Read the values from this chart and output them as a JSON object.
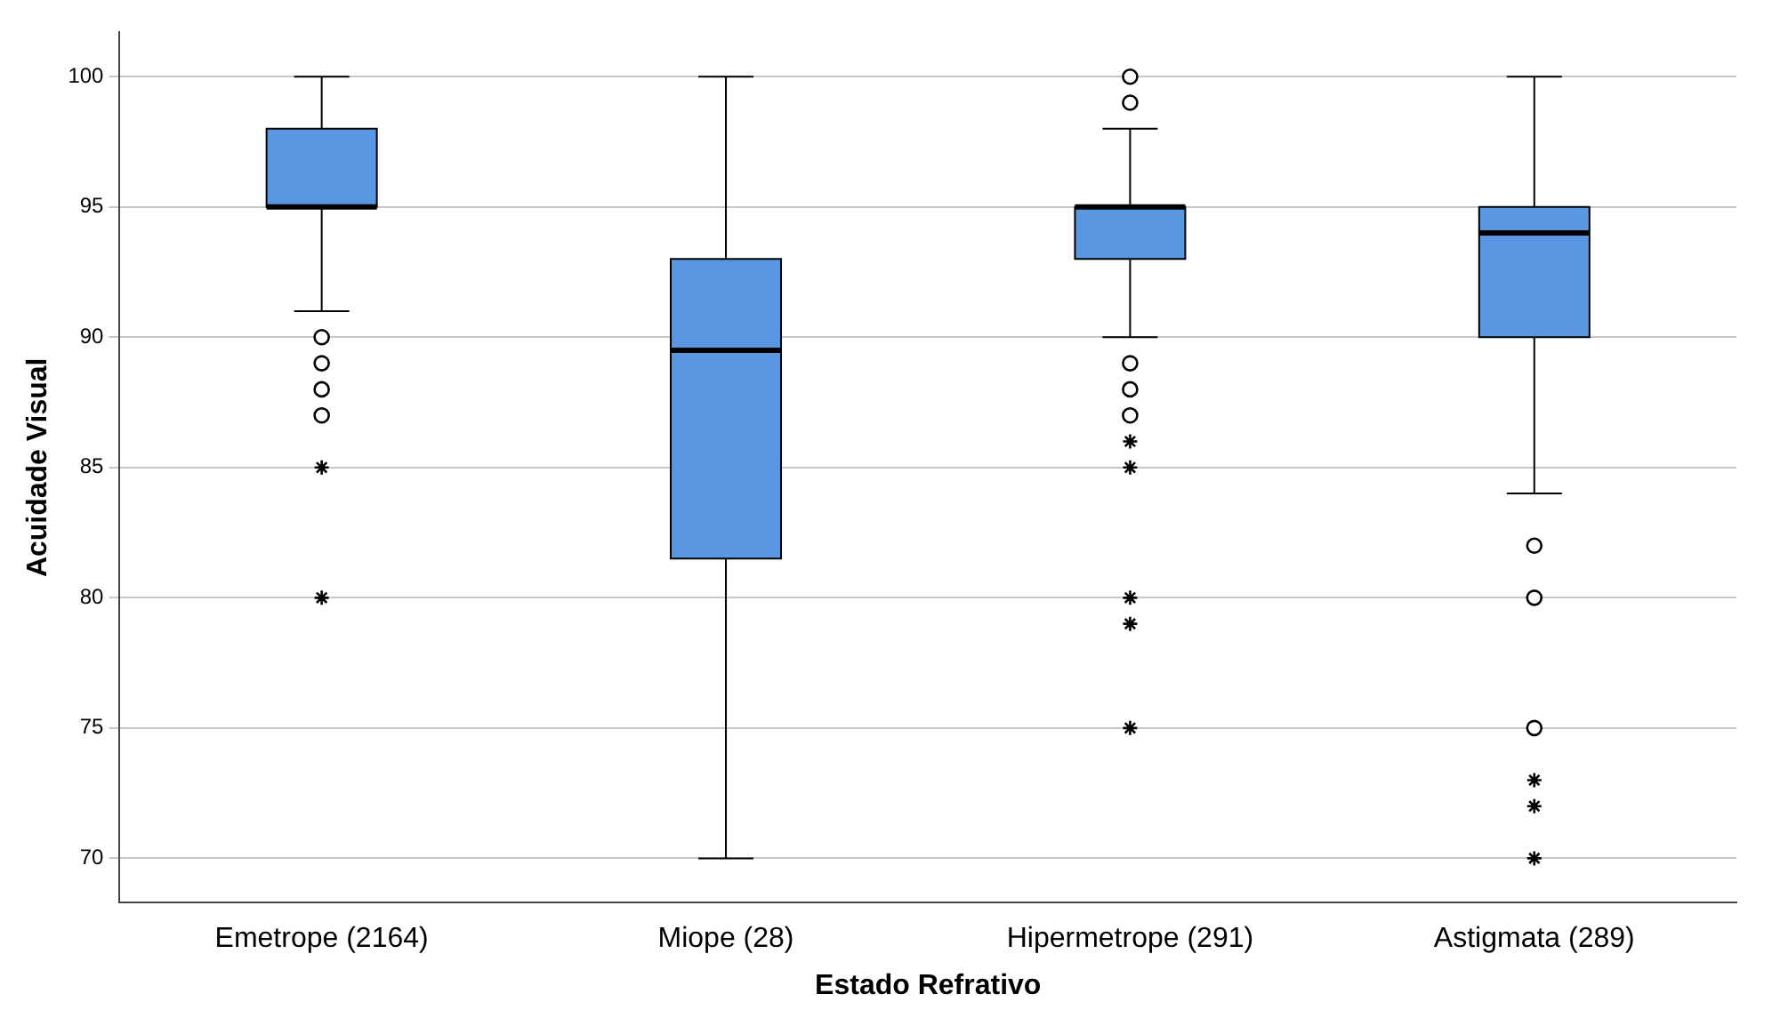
{
  "chart_data": {
    "type": "box",
    "xlabel": "Estado Refrativo",
    "ylabel": "Acuidade Visual",
    "categories": [
      "Emetrope (2164)",
      "Miope (28)",
      "Hipermetrope (291)",
      "Astigmata (289)"
    ],
    "color": "#5a97e3",
    "boxes": [
      {
        "low": 91,
        "q1": 95,
        "median": 95,
        "q3": 98,
        "high": 100,
        "outliers": [
          90,
          89,
          88,
          87
        ]
      },
      {
        "low": 70,
        "q1": 81.5,
        "median": 89.5,
        "q3": 93,
        "high": 100
      },
      {
        "low": 90,
        "q1": 93,
        "median": 95,
        "q3": 95,
        "high": 98,
        "outliers": [
          100,
          99,
          89,
          88,
          87
        ]
      },
      {
        "low": 84,
        "q1": 90,
        "median": 94,
        "q3": 95,
        "high": 100,
        "outliers": [
          82,
          80,
          75
        ]
      }
    ],
    "series": [
      {
        "type": "scatter",
        "marker": "cross",
        "color": "#000000",
        "x": [
          "Emetrope (2164)",
          "Emetrope (2164)",
          "Hipermetrope (291)",
          "Hipermetrope (291)",
          "Hipermetrope (291)",
          "Hipermetrope (291)",
          "Hipermetrope (291)",
          "Astigmata (289)",
          "Astigmata (289)",
          "Astigmata (289)"
        ],
        "values": [
          85,
          80,
          86,
          85,
          80,
          79,
          75,
          73,
          72,
          70
        ]
      }
    ],
    "ylim": [
      68.3,
      101.7
    ],
    "yticks": [
      70,
      75,
      80,
      85,
      90,
      95,
      100
    ],
    "grid": "y",
    "legend": false
  }
}
